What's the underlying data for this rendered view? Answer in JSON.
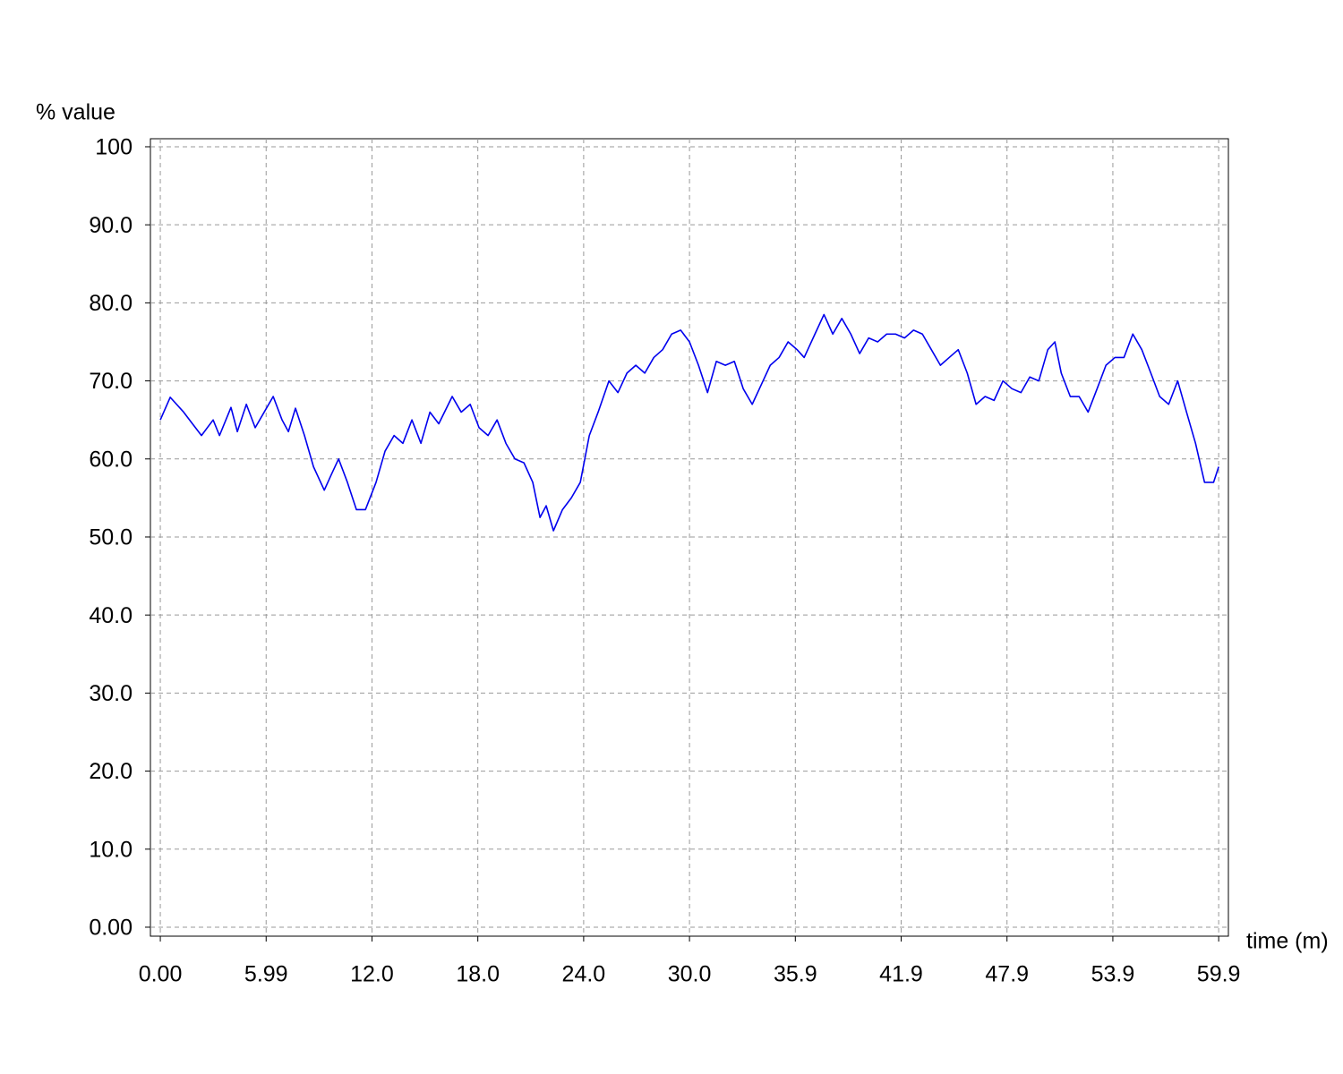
{
  "chart_data": {
    "type": "line",
    "y_label": "% value",
    "x_label": "time (m)",
    "x": [
      0,
      0.56,
      1.32,
      1.82,
      2.33,
      2.99,
      3.35,
      4.0,
      4.36,
      4.87,
      5.37,
      5.88,
      6.39,
      6.89,
      7.25,
      7.65,
      8.16,
      8.67,
      9.28,
      9.68,
      10.09,
      10.59,
      11.1,
      11.61,
      12.21,
      12.72,
      13.23,
      13.73,
      14.24,
      14.75,
      15.26,
      15.76,
      16.52,
      17.03,
      17.54,
      18.04,
      18.55,
      19.06,
      19.56,
      20.07,
      20.58,
      21.08,
      21.49,
      21.84,
      22.25,
      22.76,
      23.26,
      23.77,
      24.28,
      24.78,
      25.39,
      25.9,
      26.41,
      26.91,
      27.42,
      27.93,
      28.43,
      28.94,
      29.45,
      29.95,
      30.46,
      30.97,
      31.47,
      31.98,
      32.49,
      32.99,
      33.5,
      34.01,
      34.52,
      35.02,
      35.53,
      36.04,
      36.44,
      37.05,
      37.56,
      38.06,
      38.57,
      39.08,
      39.58,
      40.09,
      40.6,
      41.11,
      41.61,
      42.12,
      42.63,
      43.13,
      43.64,
      44.15,
      44.65,
      45.16,
      45.67,
      46.17,
      46.68,
      47.19,
      47.69,
      48.2,
      48.71,
      49.21,
      49.72,
      50.23,
      50.63,
      50.99,
      51.5,
      52.0,
      52.51,
      53.02,
      53.52,
      54.03,
      54.54,
      55.04,
      55.55,
      56.06,
      56.56,
      57.07,
      57.58,
      58.08,
      58.59,
      59.1,
      59.61,
      59.9
    ],
    "series": [
      {
        "color": "#0000ee",
        "values": [
          65,
          67.9,
          66,
          64.5,
          63,
          65,
          63,
          66.6,
          63.5,
          67,
          64,
          66,
          68,
          65,
          63.5,
          66.5,
          63,
          59,
          56,
          58,
          60,
          57,
          53.5,
          53.5,
          57,
          61,
          63,
          62,
          65,
          62,
          66,
          64.5,
          68,
          66,
          67,
          64,
          63,
          65,
          62,
          60,
          59.5,
          57,
          52.5,
          54,
          50.8,
          53.5,
          55,
          57,
          63,
          66,
          70,
          68.5,
          71,
          72,
          71,
          73,
          74,
          76,
          76.5,
          75,
          72,
          68.5,
          72.5,
          72,
          72.5,
          69,
          67,
          69.5,
          72,
          73,
          75,
          74,
          73,
          76,
          78.5,
          76,
          78,
          76,
          73.5,
          75.5,
          75,
          76,
          76,
          75.5,
          76.5,
          76,
          74,
          72,
          73,
          74,
          71,
          67,
          68,
          67.5,
          70,
          69,
          68.5,
          70.5,
          70,
          74,
          75,
          71,
          68,
          68,
          66,
          69,
          72,
          73,
          73,
          76,
          74,
          71,
          68,
          67,
          70,
          66,
          62,
          57,
          57,
          59
        ]
      }
    ],
    "xlim": [
      -0.56,
      60.45
    ],
    "ylim": [
      -1.15,
      101.03
    ],
    "xticks": [
      {
        "value": 0,
        "label": "0.00"
      },
      5.99,
      {
        "value": 11.98,
        "label": "12.0"
      },
      {
        "value": 17.97,
        "label": "18.0"
      },
      {
        "value": 23.96,
        "label": "24.0"
      },
      {
        "value": 29.95,
        "label": "30.0"
      },
      {
        "value": 35.94,
        "label": "35.9"
      },
      {
        "value": 41.93,
        "label": "41.9"
      },
      {
        "value": 47.92,
        "label": "47.9"
      },
      {
        "value": 53.91,
        "label": "53.9"
      },
      59.9
    ],
    "yticks": [
      {
        "value": 0,
        "label": "0.00"
      },
      {
        "value": 10,
        "label": "10.0"
      },
      {
        "value": 20,
        "label": "20.0"
      },
      {
        "value": 30,
        "label": "30.0"
      },
      {
        "value": 40,
        "label": "40.0"
      },
      {
        "value": 50,
        "label": "50.0"
      },
      {
        "value": 60,
        "label": "60.0"
      },
      {
        "value": 70,
        "label": "70.0"
      },
      {
        "value": 80,
        "label": "80.0"
      },
      {
        "value": 90,
        "label": "90.0"
      },
      100
    ],
    "grid": true
  }
}
